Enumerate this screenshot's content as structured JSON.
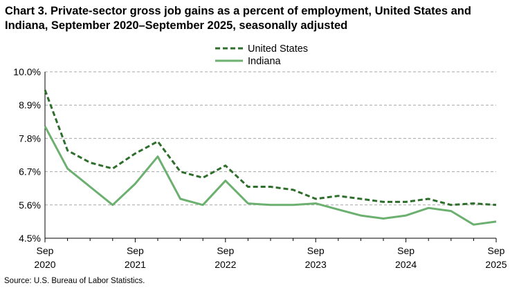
{
  "chart_data": {
    "type": "line",
    "title": "Chart 3. Private-sector gross job gains as a percent of employment, United States and Indiana, September 2020–September 2025, seasonally adjusted",
    "source": "Source: U.S. Bureau of Labor Statistics.",
    "x": [
      "Sep 2020",
      "Dec 2020",
      "Mar 2021",
      "Jun 2021",
      "Sep 2021",
      "Dec 2021",
      "Mar 2022",
      "Jun 2022",
      "Sep 2022",
      "Dec 2022",
      "Mar 2023",
      "Jun 2023",
      "Sep 2023",
      "Dec 2023",
      "Mar 2024",
      "Jun 2024",
      "Sep 2024",
      "Dec 2024",
      "Mar 2025",
      "Jun 2025",
      "Sep 2025"
    ],
    "x_tick_labels": [
      {
        "index": 0,
        "month": "Sep",
        "year": "2020"
      },
      {
        "index": 4,
        "month": "Sep",
        "year": "2021"
      },
      {
        "index": 8,
        "month": "Sep",
        "year": "2022"
      },
      {
        "index": 12,
        "month": "Sep",
        "year": "2023"
      },
      {
        "index": 16,
        "month": "Sep",
        "year": "2024"
      },
      {
        "index": 20,
        "month": "Sep",
        "year": "2025"
      }
    ],
    "y_ticks": [
      "10.0%",
      "8.9%",
      "7.8%",
      "6.7%",
      "5.6%",
      "4.5%"
    ],
    "y_tick_values": [
      10.0,
      8.9,
      7.8,
      6.7,
      5.6,
      4.5
    ],
    "ylim": [
      4.5,
      10.0
    ],
    "grid": "horizontal dashed",
    "legend_position": "top-center",
    "series": [
      {
        "name": "United States",
        "style": "dashed",
        "color": "#2e6e2b",
        "values": [
          9.4,
          7.4,
          7.0,
          6.8,
          7.3,
          7.7,
          6.7,
          6.5,
          6.9,
          6.2,
          6.2,
          6.1,
          5.8,
          5.9,
          5.8,
          5.7,
          5.7,
          5.8,
          5.6,
          5.65,
          5.6
        ]
      },
      {
        "name": "Indiana",
        "style": "solid",
        "color": "#6bb06f",
        "values": [
          8.2,
          6.8,
          6.2,
          5.6,
          6.3,
          7.2,
          5.8,
          5.6,
          6.4,
          5.65,
          5.6,
          5.6,
          5.65,
          5.45,
          5.25,
          5.15,
          5.25,
          5.5,
          5.4,
          4.95,
          5.05
        ]
      }
    ]
  }
}
